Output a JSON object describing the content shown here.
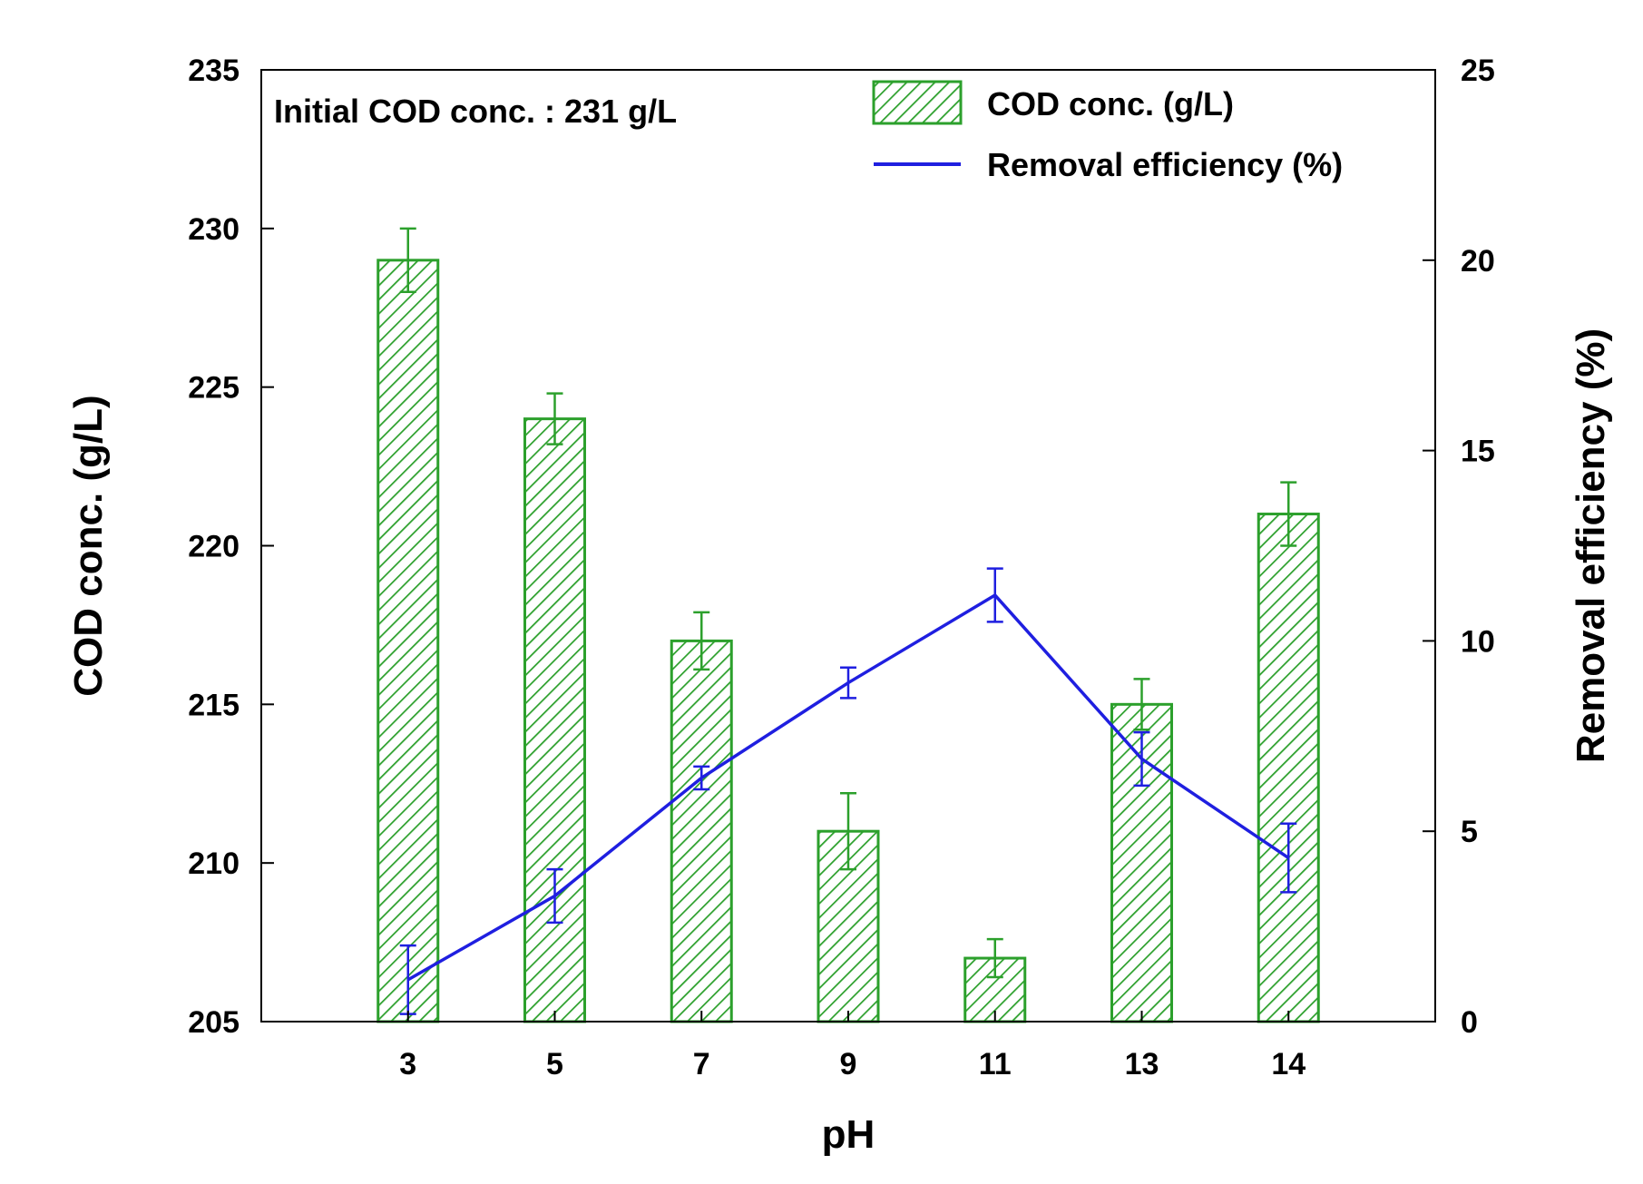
{
  "chart_data": {
    "type": "bar",
    "categories": [
      "3",
      "5",
      "7",
      "9",
      "11",
      "13",
      "14"
    ],
    "xlabel": "pH",
    "ylabel": "COD conc. (g/L)",
    "ylabel_right": "Removal efficiency (%)",
    "ylim": [
      205,
      235
    ],
    "ylim_right": [
      0,
      25
    ],
    "yticks": [
      205,
      210,
      215,
      220,
      225,
      230,
      235
    ],
    "yticks_right": [
      0,
      5,
      10,
      15,
      20,
      25
    ],
    "annotation": "Initial COD conc. : 231 g/L",
    "legend_placement": "top-right",
    "grid": false,
    "series": [
      {
        "name": "COD conc. (g/L)",
        "type": "bar",
        "axis": "left",
        "color": "#2ca02c",
        "pattern": "diagonal-hatch",
        "values": [
          229,
          224,
          217,
          211,
          207,
          215,
          221
        ],
        "errors": [
          1.0,
          0.8,
          0.9,
          1.2,
          0.6,
          0.8,
          1.0
        ]
      },
      {
        "name": "Removal efficiency (%)",
        "type": "line",
        "axis": "right",
        "color": "#1f1fe0",
        "values": [
          1.1,
          3.3,
          6.4,
          8.9,
          11.2,
          6.9,
          4.3
        ],
        "errors": [
          0.9,
          0.7,
          0.3,
          0.4,
          0.7,
          0.7,
          0.9
        ]
      }
    ]
  }
}
